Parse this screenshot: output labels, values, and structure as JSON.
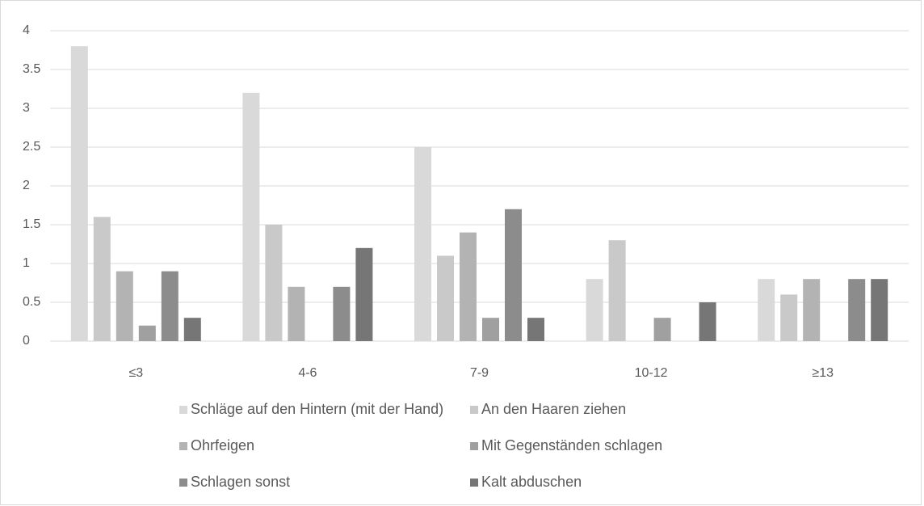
{
  "chart_data": {
    "type": "bar",
    "categories": [
      "≤3",
      "4-6",
      "7-9",
      "10-12",
      "≥13"
    ],
    "series": [
      {
        "name": "Schläge auf den Hintern (mit der Hand)",
        "color": "#d9d9d9",
        "values": [
          3.8,
          3.2,
          2.5,
          0.8,
          0.8
        ]
      },
      {
        "name": "An den Haaren ziehen",
        "color": "#c9c9c9",
        "values": [
          1.6,
          1.5,
          1.1,
          1.3,
          0.6
        ]
      },
      {
        "name": "Ohrfeigen",
        "color": "#b3b3b3",
        "values": [
          0.9,
          0.7,
          1.4,
          0,
          0.8
        ]
      },
      {
        "name": "Mit Gegenständen schlagen",
        "color": "#a0a0a0",
        "values": [
          0.2,
          0,
          0.3,
          0.3,
          0
        ]
      },
      {
        "name": "Schlagen sonst",
        "color": "#8c8c8c",
        "values": [
          0.9,
          0.7,
          1.7,
          0,
          0.8
        ]
      },
      {
        "name": "Kalt abduschen",
        "color": "#767676",
        "values": [
          0.3,
          1.2,
          0.3,
          0.5,
          0.8
        ]
      }
    ],
    "ylim": [
      0,
      4
    ],
    "yticks": [
      0,
      0.5,
      1,
      1.5,
      2,
      2.5,
      3,
      3.5,
      4
    ],
    "grid": true
  }
}
